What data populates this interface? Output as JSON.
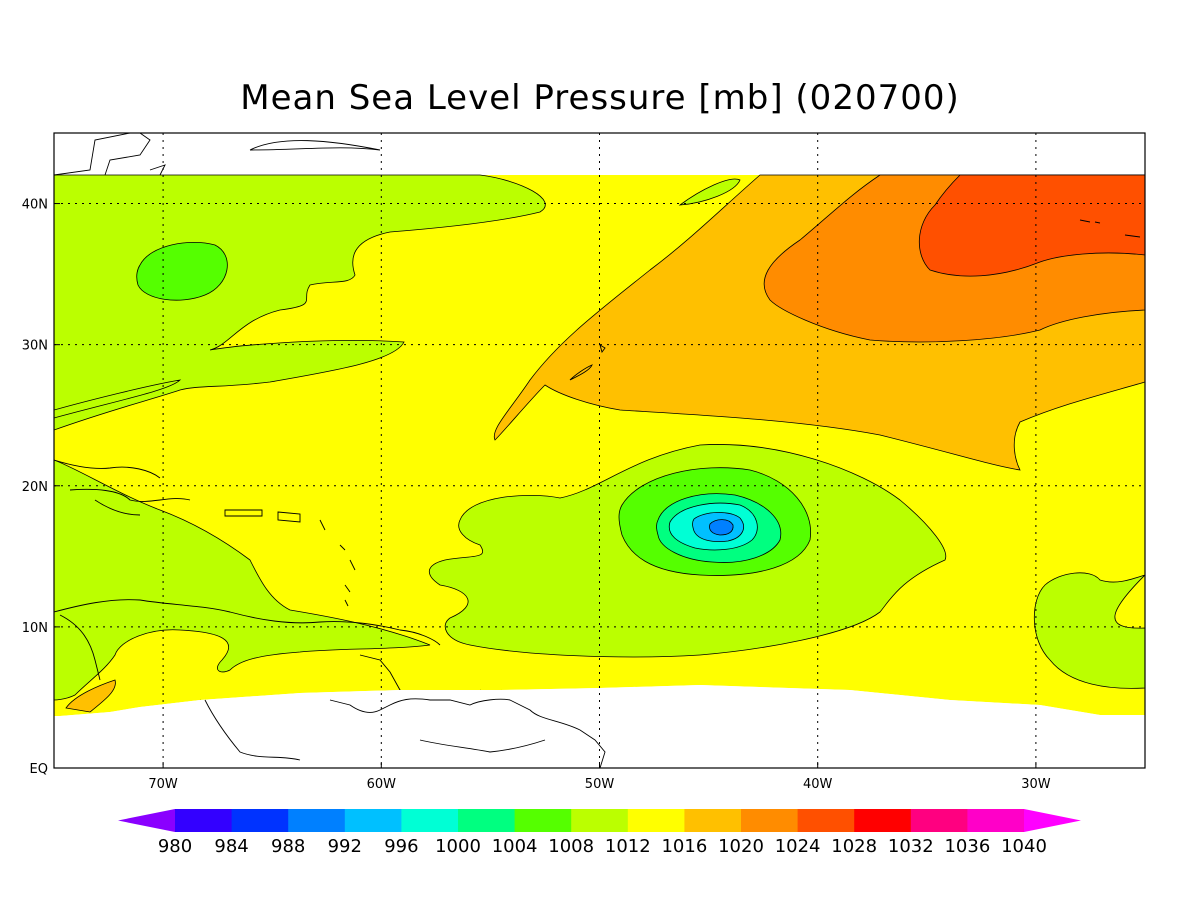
{
  "title": "Mean Sea Level Pressure [mb] (020700)",
  "map": {
    "lon_ticks": [
      "70W",
      "60W",
      "50W",
      "40W",
      "30W"
    ],
    "lat_ticks": [
      "40N",
      "30N",
      "20N",
      "10N",
      "EQ"
    ],
    "lon_range": [
      -75,
      -25
    ],
    "lat_range": [
      0,
      45
    ],
    "grid": true,
    "low_center": {
      "lon": -44.6,
      "lat": 17.1,
      "pressure_band": "996-1000"
    },
    "high_center": {
      "lon": -35,
      "lat": 38,
      "pressure_band": "1024-1028"
    }
  },
  "colorbar": {
    "labels": [
      "980",
      "984",
      "988",
      "992",
      "996",
      "1000",
      "1004",
      "1008",
      "1012",
      "1016",
      "1020",
      "1024",
      "1028",
      "1032",
      "1036",
      "1040"
    ],
    "colors": [
      "#8a00ff",
      "#3300ff",
      "#0033ff",
      "#0080ff",
      "#00c0ff",
      "#00ffd5",
      "#00ff80",
      "#55ff00",
      "#bbff00",
      "#ffff00",
      "#ffc000",
      "#ff8c00",
      "#ff5000",
      "#ff0000",
      "#ff0080",
      "#ff00c8",
      "#ff00ff"
    ]
  },
  "colors": {
    "band_1008": "#55ff00",
    "band_1012": "#bbff00",
    "band_1016": "#ffff00",
    "band_1020": "#ffc000",
    "band_1024": "#ff8c00",
    "band_1028": "#ff5000",
    "band_1000": "#00ff80",
    "band_996": "#00ffd5",
    "band_992": "#00c0ff"
  }
}
